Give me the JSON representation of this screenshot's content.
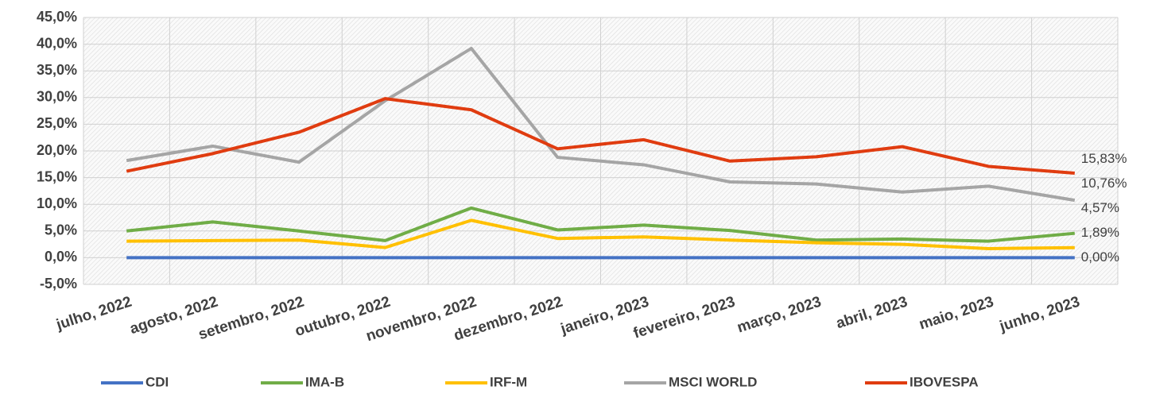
{
  "chart_data": {
    "type": "line",
    "categories": [
      "julho, 2022",
      "agosto, 2022",
      "setembro, 2022",
      "outubro, 2022",
      "novembro, 2022",
      "dezembro, 2022",
      "janeiro, 2023",
      "fevereiro, 2023",
      "março, 2023",
      "abril, 2023",
      "maio, 2023",
      "junho, 2023"
    ],
    "series": [
      {
        "name": "CDI",
        "color": "#4472c4",
        "values": [
          0,
          0,
          0,
          0,
          0,
          0,
          0,
          0,
          0,
          0,
          0,
          0
        ],
        "value_labels": [
          null,
          null,
          null,
          null,
          null,
          null,
          null,
          null,
          null,
          null,
          null,
          "0,00%"
        ]
      },
      {
        "name": "IMA-B",
        "color": "#70ad47",
        "values": [
          5.0,
          6.7,
          5.0,
          3.2,
          9.3,
          5.2,
          6.1,
          5.1,
          3.3,
          3.5,
          3.1,
          4.57
        ],
        "value_labels": [
          null,
          null,
          null,
          null,
          null,
          null,
          null,
          null,
          null,
          null,
          null,
          "4,57%"
        ]
      },
      {
        "name": "IRF-M",
        "color": "#ffc000",
        "values": [
          3.1,
          3.2,
          3.3,
          1.9,
          7.0,
          3.6,
          3.9,
          3.3,
          2.8,
          2.5,
          1.7,
          1.89
        ],
        "value_labels": [
          null,
          null,
          null,
          null,
          null,
          null,
          null,
          null,
          null,
          null,
          null,
          "1,89%"
        ]
      },
      {
        "name": "MSCI WORLD",
        "color": "#a5a5a5",
        "values": [
          18.2,
          20.9,
          17.9,
          29.4,
          39.2,
          18.8,
          17.4,
          14.2,
          13.8,
          12.3,
          13.4,
          10.76
        ],
        "value_labels": [
          null,
          null,
          null,
          null,
          null,
          null,
          null,
          null,
          null,
          null,
          null,
          "10,76%"
        ]
      },
      {
        "name": "IBOVESPA",
        "color": "#e03c10",
        "values": [
          16.2,
          19.5,
          23.5,
          29.8,
          27.7,
          20.4,
          22.1,
          18.1,
          18.9,
          20.8,
          17.1,
          15.83
        ],
        "value_labels": [
          null,
          null,
          null,
          null,
          null,
          null,
          null,
          null,
          null,
          null,
          null,
          "15,83%"
        ]
      }
    ],
    "ylim": [
      -5,
      45
    ],
    "yticks": [
      {
        "value": -5,
        "label": "-5,0%"
      },
      {
        "value": 0,
        "label": "0,0%"
      },
      {
        "value": 5,
        "label": "5,0%"
      },
      {
        "value": 10,
        "label": "10,0%"
      },
      {
        "value": 15,
        "label": "15,0%"
      },
      {
        "value": 20,
        "label": "20,0%"
      },
      {
        "value": 25,
        "label": "25,0%"
      },
      {
        "value": 30,
        "label": "30,0%"
      },
      {
        "value": 35,
        "label": "35,0%"
      },
      {
        "value": 40,
        "label": "40,0%"
      },
      {
        "value": 45,
        "label": "45,0%"
      }
    ],
    "grid": true,
    "legend": "bottom"
  }
}
